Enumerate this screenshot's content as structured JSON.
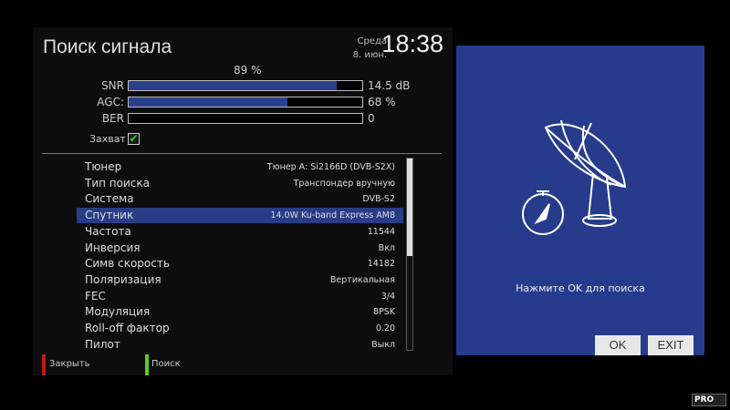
{
  "header": {
    "title": "Поиск сигнала",
    "day": "Среда",
    "date": "8. июн.",
    "time": "18:38"
  },
  "signal": {
    "quality": "89 %",
    "snr": {
      "label": "SNR",
      "value": "14.5 dB",
      "level": 0.89
    },
    "agc": {
      "label": "AGC:",
      "value": "68 %",
      "level": 0.68
    },
    "ber": {
      "label": "BER",
      "value": "0",
      "level": 0
    },
    "lock": {
      "label": "Захват",
      "checked": true
    }
  },
  "settings": [
    {
      "key": "Тюнер",
      "value": "Тюнер A: Si2166D (DVB-S2X)"
    },
    {
      "key": "Тип поиска",
      "value": "Транспондер вручную"
    },
    {
      "key": "Система",
      "value": "DVB-S2"
    },
    {
      "key": "Спутник",
      "value": "14.0W Ku-band Express AM8",
      "selected": true
    },
    {
      "key": "Частота",
      "value": "11544"
    },
    {
      "key": "Инверсия",
      "value": "Вкл"
    },
    {
      "key": "Симв скорость",
      "value": "14182"
    },
    {
      "key": "Поляризация",
      "value": "Вертикальная"
    },
    {
      "key": "FEC",
      "value": "3/4"
    },
    {
      "key": "Модуляция",
      "value": "8PSK"
    },
    {
      "key": "Roll-off фактор",
      "value": "0.20"
    },
    {
      "key": "Пилот",
      "value": "Выкл"
    }
  ],
  "footer": {
    "close": "Закрыть",
    "close_color": "#c01818",
    "search": "Поиск",
    "search_color": "#5ecb2a"
  },
  "panel": {
    "message": "Нажмите OK для поиска",
    "ok": "OK",
    "exit": "EXIT",
    "icon": "satellite-dish-icon",
    "bg": "#263b8c"
  },
  "watermark": "PRO"
}
